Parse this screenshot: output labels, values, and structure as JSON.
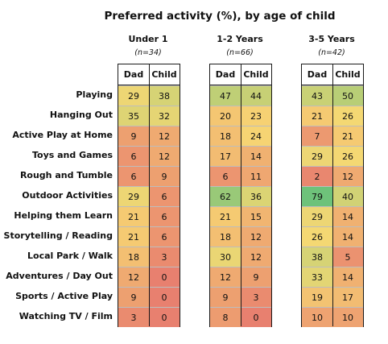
{
  "chart_data": {
    "type": "table",
    "title": "Preferred activity (%), by age of child",
    "column_labels": [
      "Dad",
      "Child"
    ],
    "groups": [
      {
        "label": "Under 1",
        "n": "(n=34)"
      },
      {
        "label": "1-2 Years",
        "n": "(n=66)"
      },
      {
        "label": "3-5 Years",
        "n": "(n=42)"
      }
    ],
    "rows": [
      {
        "label": "Playing",
        "values": [
          [
            29,
            38
          ],
          [
            47,
            44
          ],
          [
            43,
            50
          ]
        ]
      },
      {
        "label": "Hanging Out",
        "values": [
          [
            35,
            32
          ],
          [
            20,
            23
          ],
          [
            21,
            26
          ]
        ]
      },
      {
        "label": "Active Play at Home",
        "values": [
          [
            9,
            12
          ],
          [
            18,
            24
          ],
          [
            7,
            21
          ]
        ]
      },
      {
        "label": "Toys and Games",
        "values": [
          [
            6,
            12
          ],
          [
            17,
            14
          ],
          [
            29,
            26
          ]
        ]
      },
      {
        "label": "Rough and Tumble",
        "values": [
          [
            6,
            9
          ],
          [
            6,
            11
          ],
          [
            2,
            12
          ]
        ]
      },
      {
        "label": "Outdoor Activities",
        "values": [
          [
            29,
            6
          ],
          [
            62,
            36
          ],
          [
            79,
            40
          ]
        ]
      },
      {
        "label": "Helping them Learn",
        "values": [
          [
            21,
            6
          ],
          [
            21,
            15
          ],
          [
            29,
            14
          ]
        ]
      },
      {
        "label": "Storytelling / Reading",
        "values": [
          [
            21,
            6
          ],
          [
            18,
            12
          ],
          [
            26,
            14
          ]
        ]
      },
      {
        "label": "Local Park / Walk",
        "values": [
          [
            18,
            3
          ],
          [
            30,
            12
          ],
          [
            38,
            5
          ]
        ]
      },
      {
        "label": "Adventures / Day Out",
        "values": [
          [
            12,
            0
          ],
          [
            12,
            9
          ],
          [
            33,
            14
          ]
        ]
      },
      {
        "label": "Sports / Active Play",
        "values": [
          [
            9,
            0
          ],
          [
            9,
            3
          ],
          [
            19,
            17
          ]
        ]
      },
      {
        "label": "Watching TV / Film",
        "values": [
          [
            3,
            0
          ],
          [
            8,
            0
          ],
          [
            10,
            10
          ]
        ]
      }
    ],
    "color_scale": {
      "low": "#e8806f",
      "mid": "#f7d873",
      "high": "#6ec27a"
    }
  }
}
